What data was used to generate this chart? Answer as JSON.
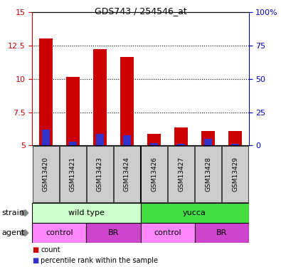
{
  "title": "GDS743 / 254546_at",
  "samples": [
    "GSM13420",
    "GSM13421",
    "GSM13423",
    "GSM13424",
    "GSM13426",
    "GSM13427",
    "GSM13428",
    "GSM13429"
  ],
  "red_values": [
    13.0,
    10.15,
    12.2,
    11.65,
    5.9,
    6.35,
    6.1,
    6.1
  ],
  "blue_values": [
    6.2,
    5.3,
    5.85,
    5.75,
    5.2,
    5.15,
    5.5,
    5.15
  ],
  "bar_base": 5.0,
  "ylim": [
    5.0,
    15.0
  ],
  "yticks_left": [
    5.0,
    7.5,
    10.0,
    12.5,
    15.0
  ],
  "ytick_left_labels": [
    "5",
    "7.5",
    "10",
    "12.5",
    "15"
  ],
  "ytick_right_labels": [
    "0",
    "25",
    "50",
    "75",
    "100%"
  ],
  "red_color": "#cc0000",
  "blue_color": "#3333cc",
  "strain_wt_color": "#ccffcc",
  "strain_yucca_color": "#44dd44",
  "agent_control_color": "#ff88ff",
  "agent_br_color": "#cc44cc",
  "strain_labels": [
    "wild type",
    "yucca"
  ],
  "agent_labels": [
    "control",
    "BR",
    "control",
    "BR"
  ],
  "axis_label_color_left": "#cc0000",
  "axis_label_color_right": "#0000cc",
  "bar_width": 0.5,
  "blue_bar_width": 0.3
}
